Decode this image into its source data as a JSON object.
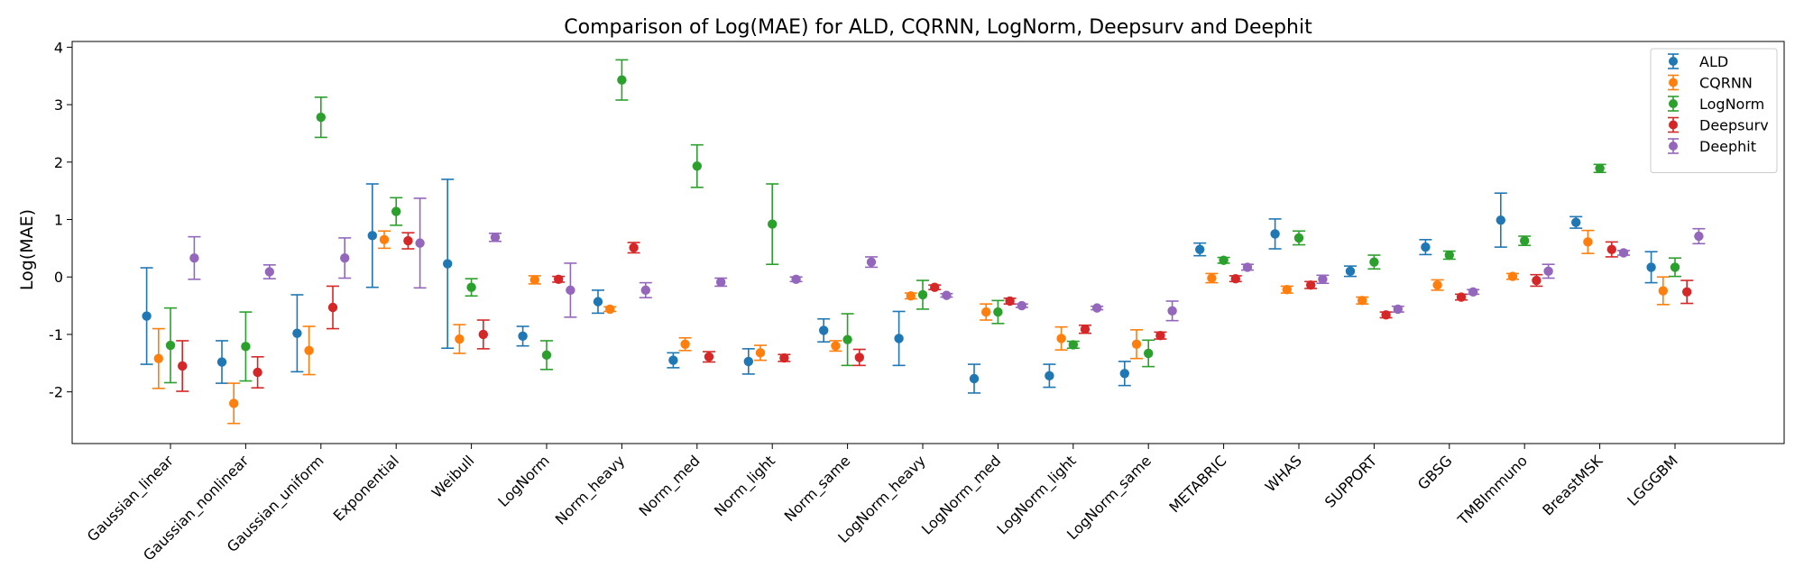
{
  "chart_data": {
    "type": "scatter",
    "subtype": "errorbar",
    "title": "Comparison of Log(MAE) for ALD, CQRNN, LogNorm, Deepsurv and Deephit",
    "xlabel": "",
    "ylabel": "Log(MAE)",
    "ylim": [
      -2.9,
      4.1
    ],
    "yticks": [
      -2,
      -1,
      0,
      1,
      2,
      3,
      4
    ],
    "legend_position": "top-right",
    "grid": false,
    "categories": [
      "Gaussian_linear",
      "Gaussian_nonlinear",
      "Gaussian_uniform",
      "Exponential",
      "Weibull",
      "LogNorm",
      "Norm_heavy",
      "Norm_med",
      "Norm_light",
      "Norm_same",
      "LogNorm_heavy",
      "LogNorm_med",
      "LogNorm_light",
      "LogNorm_same",
      "METABRIC",
      "WHAS",
      "SUPPORT",
      "GBSG",
      "TMBImmuno",
      "BreastMSK",
      "LGGGBM"
    ],
    "series": [
      {
        "name": "ALD",
        "color": "#1f77b4",
        "values": [
          -0.68,
          -1.48,
          -0.98,
          0.72,
          0.23,
          -1.03,
          -0.43,
          -1.45,
          -1.47,
          -0.93,
          -1.07,
          -1.77,
          -1.72,
          -1.68,
          0.48,
          0.75,
          0.1,
          0.52,
          0.99,
          0.95,
          0.17
        ],
        "errors": [
          0.84,
          0.37,
          0.67,
          0.9,
          1.47,
          0.17,
          0.2,
          0.13,
          0.22,
          0.2,
          0.47,
          0.25,
          0.2,
          0.21,
          0.11,
          0.26,
          0.09,
          0.13,
          0.47,
          0.1,
          0.27
        ]
      },
      {
        "name": "CQRNN",
        "color": "#ff7f0e",
        "values": [
          -1.42,
          -2.2,
          -1.28,
          0.65,
          -1.08,
          -0.05,
          -0.56,
          -1.17,
          -1.32,
          -1.2,
          -0.33,
          -0.61,
          -1.07,
          -1.17,
          -0.02,
          -0.22,
          -0.41,
          -0.14,
          0.01,
          0.61,
          -0.24
        ],
        "errors": [
          0.52,
          0.35,
          0.42,
          0.15,
          0.25,
          0.07,
          0.04,
          0.11,
          0.13,
          0.09,
          0.05,
          0.14,
          0.2,
          0.25,
          0.08,
          0.06,
          0.06,
          0.09,
          0.05,
          0.2,
          0.24
        ]
      },
      {
        "name": "LogNorm",
        "color": "#2ca02c",
        "values": [
          -1.19,
          -1.21,
          2.78,
          1.14,
          -0.18,
          -1.36,
          3.43,
          1.93,
          0.92,
          -1.09,
          -0.31,
          -0.61,
          -1.18,
          -1.33,
          0.29,
          0.68,
          0.26,
          0.38,
          0.63,
          1.89,
          0.17
        ],
        "errors": [
          0.65,
          0.6,
          0.35,
          0.24,
          0.15,
          0.25,
          0.35,
          0.37,
          0.7,
          0.45,
          0.25,
          0.2,
          0.06,
          0.23,
          0.05,
          0.12,
          0.12,
          0.07,
          0.08,
          0.07,
          0.16
        ]
      },
      {
        "name": "Deepsurv",
        "color": "#d62728",
        "values": [
          -1.55,
          -1.66,
          -0.53,
          0.63,
          -1.0,
          -0.04,
          0.51,
          -1.39,
          -1.41,
          -1.4,
          -0.18,
          -0.42,
          -0.91,
          -1.02,
          -0.03,
          -0.14,
          -0.66,
          -0.35,
          -0.06,
          0.48,
          -0.26
        ],
        "errors": [
          0.44,
          0.27,
          0.37,
          0.14,
          0.25,
          0.05,
          0.09,
          0.09,
          0.06,
          0.14,
          0.04,
          0.05,
          0.07,
          0.06,
          0.05,
          0.06,
          0.05,
          0.05,
          0.1,
          0.13,
          0.2
        ]
      },
      {
        "name": "Deephit",
        "color": "#9467bd",
        "values": [
          0.33,
          0.09,
          0.33,
          0.59,
          0.69,
          -0.23,
          -0.23,
          -0.09,
          -0.04,
          0.26,
          -0.32,
          -0.5,
          -0.54,
          -0.59,
          0.17,
          -0.04,
          -0.56,
          -0.26,
          0.1,
          0.42,
          0.71
        ],
        "errors": [
          0.37,
          0.12,
          0.35,
          0.78,
          0.07,
          0.47,
          0.13,
          0.07,
          0.04,
          0.09,
          0.03,
          0.03,
          0.03,
          0.17,
          0.05,
          0.07,
          0.05,
          0.04,
          0.12,
          0.04,
          0.13
        ]
      }
    ]
  }
}
